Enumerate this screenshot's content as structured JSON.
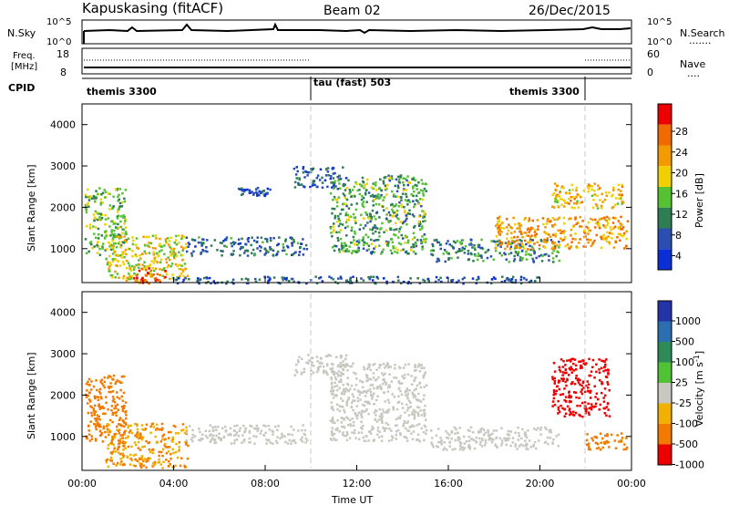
{
  "header": {
    "station": "Kapuskasing (fitACF)",
    "beam": "Beam 02",
    "date": "26/Dec/2015"
  },
  "strip1": {
    "left_label": "N.Sky",
    "left_ticks": [
      "10^5",
      "10^0"
    ],
    "right_ticks": [
      "10^5",
      "10^0"
    ],
    "right_label": "N.Search",
    "right_legend_line": "......."
  },
  "strip2": {
    "left_label_1": "Freq.",
    "left_label_2": "[MHz]",
    "left_ticks": [
      "18",
      "8"
    ],
    "right_ticks": [
      "60",
      "0"
    ],
    "right_label": "Nave",
    "right_legend_line": "...."
  },
  "cpid": {
    "label": "CPID",
    "segments": [
      "themis 3300",
      "tau (fast) 503",
      "themis 3300"
    ],
    "segment_hours": [
      0,
      10,
      22,
      24
    ]
  },
  "colors": {
    "power": [
      "#0a2fd6",
      "#2a4fb0",
      "#2f7d52",
      "#55c232",
      "#f0d000",
      "#f29a00",
      "#f06a00",
      "#ee0000"
    ],
    "velocity": [
      "#2533a8",
      "#2c6fb1",
      "#2e8b57",
      "#52c234",
      "#c8c8c0",
      "#f2b000",
      "#f37a00",
      "#ef0000"
    ]
  },
  "chart_data": [
    {
      "type": "heatmap",
      "panel": "power",
      "ylabel": "Slant Range [km]",
      "ylim": [
        180,
        4500
      ],
      "yticks": [
        "1000",
        "2000",
        "3000",
        "4000"
      ],
      "xlim": [
        0,
        24
      ],
      "colorbar": {
        "label": "Power [dB]",
        "ticks": [
          "28",
          "24",
          "20",
          "16",
          "12",
          "8",
          "4"
        ]
      },
      "echo_regions": [
        {
          "hours": [
            0.1,
            1.9
          ],
          "range_km": [
            850,
            2500
          ],
          "power_db": 14
        },
        {
          "hours": [
            1.0,
            4.6
          ],
          "range_km": [
            250,
            1350
          ],
          "power_db": 18
        },
        {
          "hours": [
            2.2,
            3.6
          ],
          "range_km": [
            180,
            550
          ],
          "power_db": 27
        },
        {
          "hours": [
            4.5,
            9.8
          ],
          "range_km": [
            850,
            1300
          ],
          "power_db": 8
        },
        {
          "hours": [
            6.8,
            8.2
          ],
          "range_km": [
            2300,
            2500
          ],
          "power_db": 6
        },
        {
          "hours": [
            9.2,
            11.5
          ],
          "range_km": [
            2500,
            3000
          ],
          "power_db": 6
        },
        {
          "hours": [
            10.8,
            15.0
          ],
          "range_km": [
            900,
            2800
          ],
          "power_db": 12
        },
        {
          "hours": [
            15.2,
            20.8
          ],
          "range_km": [
            700,
            1250
          ],
          "power_db": 10
        },
        {
          "hours": [
            18.0,
            23.8
          ],
          "range_km": [
            1000,
            1800
          ],
          "power_db": 22
        },
        {
          "hours": [
            20.5,
            23.6
          ],
          "range_km": [
            2000,
            2600
          ],
          "power_db": 20
        },
        {
          "hours": [
            4.0,
            20.0
          ],
          "range_km": [
            180,
            350
          ],
          "power_db": 6
        }
      ]
    },
    {
      "type": "heatmap",
      "panel": "velocity",
      "ylabel": "Slant Range [km]",
      "ylim": [
        180,
        4500
      ],
      "yticks": [
        "1000",
        "2000",
        "3000",
        "4000"
      ],
      "xlim": [
        0,
        24
      ],
      "xticks": [
        "00:00",
        "04:00",
        "08:00",
        "12:00",
        "16:00",
        "20:00",
        "00:00"
      ],
      "xlabel": "Time UT",
      "colorbar": {
        "label": "Velocity [m s^-1]",
        "ticks": [
          "1000",
          "500",
          "100",
          "25",
          "-25",
          "-100",
          "-500",
          "-1000"
        ]
      },
      "echo_regions": [
        {
          "hours": [
            0.1,
            1.9
          ],
          "range_km": [
            850,
            2500
          ],
          "velocity": -300
        },
        {
          "hours": [
            1.0,
            4.6
          ],
          "range_km": [
            250,
            1350
          ],
          "velocity": -100
        },
        {
          "hours": [
            4.5,
            9.8
          ],
          "range_km": [
            850,
            1300
          ],
          "velocity": 0
        },
        {
          "hours": [
            9.2,
            11.5
          ],
          "range_km": [
            2500,
            3000
          ],
          "velocity": 0
        },
        {
          "hours": [
            10.8,
            15.0
          ],
          "range_km": [
            900,
            2800
          ],
          "velocity": 0
        },
        {
          "hours": [
            15.2,
            20.8
          ],
          "range_km": [
            700,
            1250
          ],
          "velocity": 0
        },
        {
          "hours": [
            20.5,
            23.0
          ],
          "range_km": [
            1500,
            2900
          ],
          "velocity": -600
        },
        {
          "hours": [
            22.0,
            23.8
          ],
          "range_km": [
            700,
            1100
          ],
          "velocity": -300
        }
      ]
    }
  ]
}
